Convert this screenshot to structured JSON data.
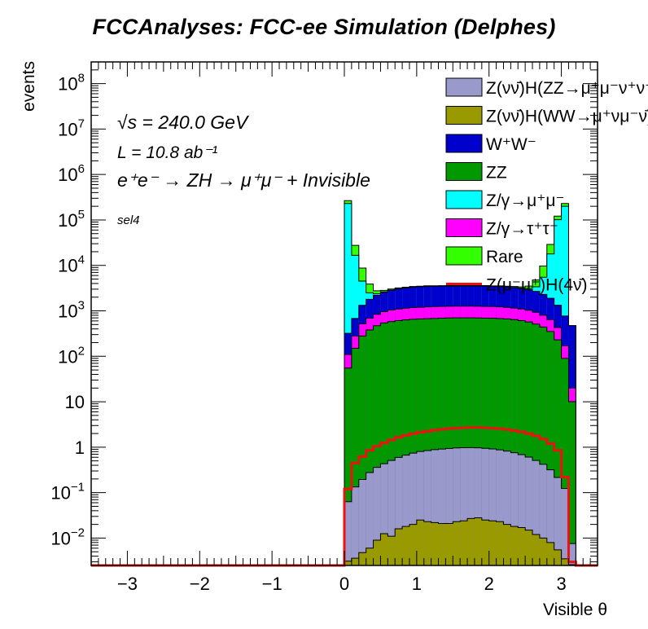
{
  "title": "FCCAnalyses: FCC-ee Simulation (Delphes)",
  "chart_data": {
    "type": "histogram",
    "title": "FCCAnalyses: FCC-ee Simulation (Delphes)",
    "xlabel": "Visible θ",
    "ylabel": "events",
    "xlim": [
      -3.5,
      3.5
    ],
    "ylim": [
      0.0025,
      300000000
    ],
    "log_y": true,
    "stacked": true,
    "grid": false,
    "legend_placement": "top-right",
    "x_ticks": [
      "−3",
      "−2",
      "−1",
      "0",
      "1",
      "2",
      "3"
    ],
    "y_ticks": [
      {
        "value": 0.01,
        "base": "10",
        "exp": "−2"
      },
      {
        "value": 0.1,
        "base": "10",
        "exp": "−1"
      },
      {
        "value": 1,
        "base": "1",
        "exp": ""
      },
      {
        "value": 10,
        "base": "10",
        "exp": ""
      },
      {
        "value": 100,
        "base": "10",
        "exp": "2"
      },
      {
        "value": 1000,
        "base": "10",
        "exp": "3"
      },
      {
        "value": 10000,
        "base": "10",
        "exp": "4"
      },
      {
        "value": 100000,
        "base": "10",
        "exp": "5"
      },
      {
        "value": 1000000,
        "base": "10",
        "exp": "6"
      },
      {
        "value": 10000000,
        "base": "10",
        "exp": "7"
      },
      {
        "value": 100000000,
        "base": "10",
        "exp": "8"
      }
    ],
    "annotations": {
      "sqrts": "√s = 240.0 GeV",
      "lumi": "L = 10.8 ab⁻¹",
      "process": "e⁺e⁻ → ZH → μ⁺μ⁻ + Invisible",
      "selection": "sel4"
    },
    "bins": {
      "first_edge": 0.0,
      "width": 0.1,
      "count": 32
    },
    "stack": [
      {
        "name": "Z(νν̄)H(WW→μ⁺νμ⁻ν̄)",
        "color": "#999900",
        "lineColor": "#000000",
        "values": [
          0.0031,
          0.0036,
          0.0048,
          0.006,
          0.009,
          0.0125,
          0.011,
          0.016,
          0.018,
          0.02,
          0.025,
          0.023,
          0.022,
          0.021,
          0.021,
          0.023,
          0.024,
          0.027,
          0.028,
          0.025,
          0.024,
          0.023,
          0.02,
          0.018,
          0.017,
          0.015,
          0.012,
          0.01,
          0.008,
          0.0055,
          0.0035,
          0.0026
        ]
      },
      {
        "name": "Z(νν̄)H(ZZ→μ⁺μ⁻ν⁺ν⁻)",
        "color": "#9999cc",
        "lineColor": "#000000",
        "values": [
          0.06,
          0.13,
          0.19,
          0.27,
          0.35,
          0.42,
          0.5,
          0.58,
          0.65,
          0.72,
          0.78,
          0.82,
          0.86,
          0.89,
          0.92,
          0.94,
          0.95,
          0.95,
          0.94,
          0.92,
          0.89,
          0.85,
          0.8,
          0.74,
          0.67,
          0.59,
          0.5,
          0.41,
          0.31,
          0.21,
          0.12,
          0.005
        ]
      },
      {
        "name": "Z(μ⁻μ⁺)H(4ν̄)",
        "color": "#ee1111",
        "lineColor": "#ee1111",
        "overlay": true,
        "values": [
          0.12,
          0.45,
          0.62,
          0.85,
          1.05,
          1.25,
          1.45,
          1.65,
          1.82,
          1.98,
          2.12,
          2.25,
          2.38,
          2.48,
          2.57,
          2.63,
          2.68,
          2.72,
          2.72,
          2.68,
          2.62,
          2.55,
          2.45,
          2.32,
          2.18,
          2.0,
          1.78,
          1.52,
          1.2,
          0.85,
          0.22,
          0.003
        ]
      },
      {
        "name": "ZZ",
        "color": "#009900",
        "lineColor": "#000000",
        "values": [
          55,
          150,
          280,
          380,
          470,
          540,
          580,
          610,
          630,
          650,
          660,
          670,
          680,
          690,
          695,
          700,
          700,
          700,
          695,
          690,
          685,
          675,
          660,
          640,
          610,
          570,
          510,
          440,
          350,
          230,
          90,
          10
        ]
      },
      {
        "name": "Z/γ→τ⁺τ⁻",
        "color": "#ff00ff",
        "lineColor": "#000000",
        "values": [
          55,
          130,
          240,
          310,
          370,
          420,
          460,
          490,
          510,
          530,
          540,
          550,
          555,
          560,
          565,
          570,
          570,
          570,
          565,
          560,
          555,
          545,
          530,
          510,
          490,
          460,
          420,
          360,
          290,
          200,
          80,
          10
        ]
      },
      {
        "name": "W⁺W⁻",
        "color": "#0000cc",
        "lineColor": "#000000",
        "values": [
          210,
          400,
          800,
          1100,
          1350,
          1600,
          1800,
          1950,
          2050,
          2150,
          2200,
          2250,
          2250,
          2250,
          2250,
          2250,
          2250,
          2250,
          2250,
          2250,
          2200,
          2200,
          2150,
          2100,
          2000,
          1900,
          1750,
          1500,
          1250,
          900,
          600,
          450
        ]
      },
      {
        "name": "Z/γ→μ⁺μ⁻",
        "color": "#00ffff",
        "lineColor": "#000000",
        "values": [
          230000,
          16000,
          3200,
          700,
          180,
          60,
          30,
          20,
          15,
          12,
          10,
          9,
          8,
          8,
          8,
          8,
          8,
          8,
          9,
          10,
          12,
          15,
          20,
          30,
          60,
          180,
          700,
          3200,
          16000,
          100000,
          200000,
          0
        ]
      },
      {
        "name": "Rare",
        "color": "#33ff00",
        "lineColor": "#000000",
        "values": [
          36000,
          11000,
          4200,
          1400,
          400,
          200,
          150,
          120,
          100,
          90,
          80,
          75,
          70,
          70,
          70,
          70,
          70,
          70,
          75,
          80,
          90,
          100,
          120,
          150,
          200,
          400,
          1400,
          4200,
          11000,
          20000,
          30000,
          0
        ]
      }
    ],
    "legend": [
      {
        "label": "Z(νν̄)H(ZZ→μ⁺μ⁻ν⁺ν⁻)",
        "color": "#9999cc",
        "kind": "box"
      },
      {
        "label": "Z(νν̄)H(WW→μ⁺νμ⁻ν̄)",
        "color": "#999900",
        "kind": "box"
      },
      {
        "label": "W⁺W⁻",
        "color": "#0000cc",
        "kind": "box"
      },
      {
        "label": "ZZ",
        "color": "#009900",
        "kind": "box"
      },
      {
        "label": "Z/γ→μ⁺μ⁻",
        "color": "#00ffff",
        "kind": "box"
      },
      {
        "label": "Z/γ→τ⁺τ⁻",
        "color": "#ff00ff",
        "kind": "box"
      },
      {
        "label": "Rare",
        "color": "#33ff00",
        "kind": "box"
      },
      {
        "label": "Z(μ⁻μ⁺)H(4ν̄)",
        "color": "#ee1111",
        "kind": "line"
      }
    ]
  }
}
